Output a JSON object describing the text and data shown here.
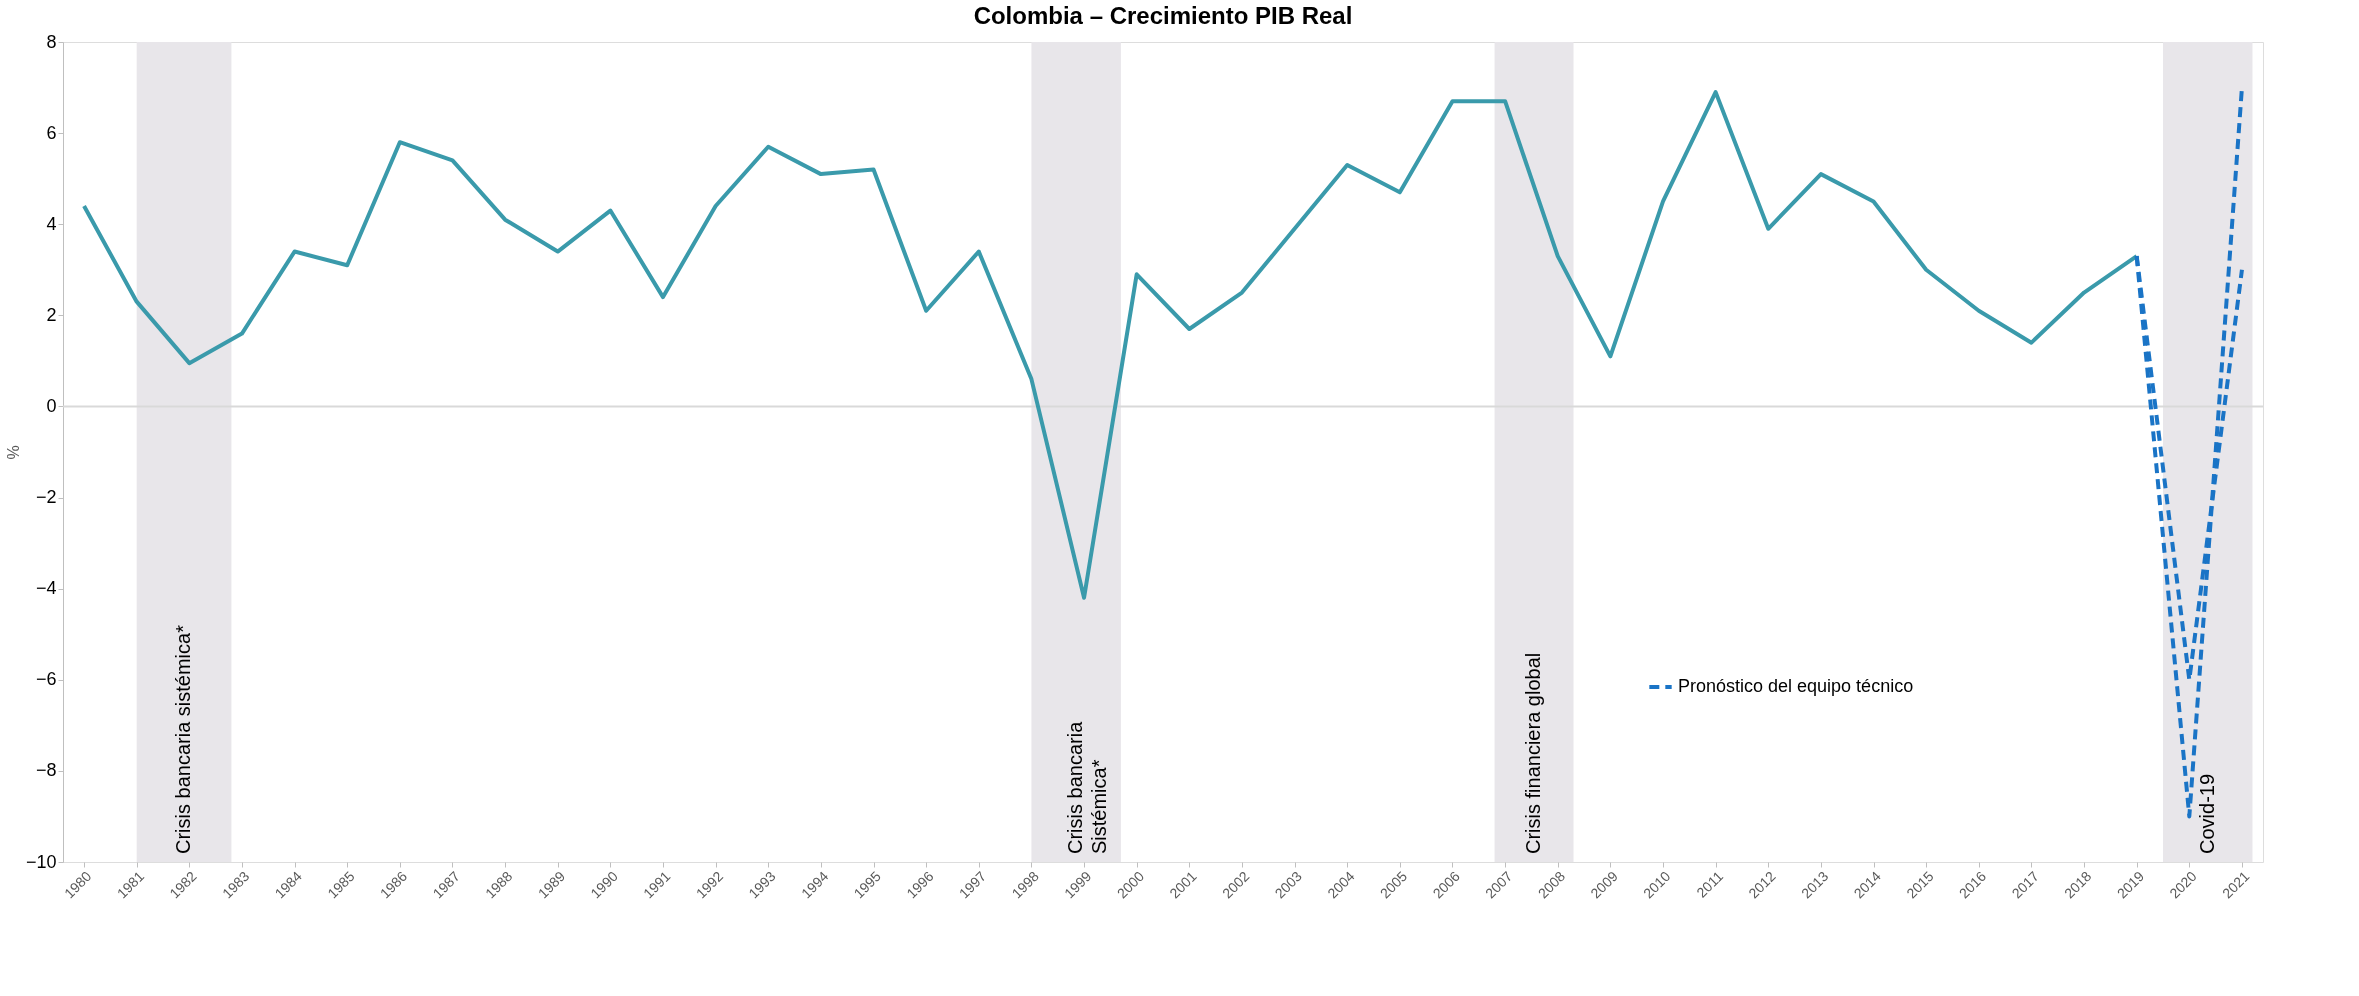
{
  "chart_data": {
    "type": "line",
    "title": "Colombia – Crecimiento PIB Real",
    "ylabel": "%",
    "xlim": [
      1979.6,
      2021.4
    ],
    "xticks": [
      1980,
      1981,
      1982,
      1983,
      1984,
      1985,
      1986,
      1987,
      1988,
      1989,
      1990,
      1991,
      1992,
      1993,
      1994,
      1995,
      1996,
      1997,
      1998,
      1999,
      2000,
      2001,
      2002,
      2003,
      2004,
      2005,
      2006,
      2007,
      2008,
      2009,
      2010,
      2011,
      2012,
      2013,
      2014,
      2015,
      2016,
      2017,
      2018,
      2019,
      2020,
      2021
    ],
    "ylim": [
      -10,
      8
    ],
    "yticks": [
      -10,
      -8,
      -6,
      -4,
      -2,
      0,
      2,
      4,
      6,
      8
    ],
    "grid": false,
    "legend": "bottom right",
    "marker": "none",
    "series": [
      {
        "color": "#3a9aab",
        "line_style": "solid",
        "x": [
          1980,
          1981,
          1982,
          1983,
          1984,
          1985,
          1986,
          1987,
          1988,
          1989,
          1990,
          1991,
          1992,
          1993,
          1994,
          1995,
          1996,
          1997,
          1998,
          1999,
          2000,
          2001,
          2002,
          2003,
          2004,
          2005,
          2006,
          2007,
          2008,
          2009,
          2010,
          2011,
          2012,
          2013,
          2014,
          2015,
          2016,
          2017,
          2018,
          2019
        ],
        "values": [
          4.4,
          2.3,
          0.95,
          1.6,
          3.4,
          3.1,
          5.8,
          5.4,
          4.1,
          3.4,
          4.3,
          2.4,
          4.4,
          5.7,
          5.1,
          5.2,
          2.1,
          3.4,
          0.6,
          -4.2,
          2.9,
          1.7,
          2.5,
          3.9,
          5.3,
          4.7,
          6.7,
          6.7,
          3.3,
          1.1,
          4.5,
          6.9,
          3.9,
          5.1,
          4.5,
          3.0,
          2.1,
          1.4,
          2.5,
          3.3
        ]
      },
      {
        "name": "Pronóstico del equipo técnico",
        "color": "#1a74c6",
        "line_style": "dashed",
        "x": [
          2019,
          2020,
          2021
        ],
        "values": [
          3.3,
          -6.0,
          3.0
        ]
      },
      {
        "color": "#1a74c6",
        "line_style": "dashed",
        "x": [
          2019,
          2020,
          2021
        ],
        "values": [
          3.3,
          -9.0,
          7.0
        ]
      }
    ],
    "ref_lines": [
      {
        "axis": "y",
        "value": 0,
        "color": "#d9d9d9"
      }
    ],
    "bands": [
      {
        "axis": "x",
        "from": 1981,
        "to": 1982.8,
        "label": "Crisis bancaria sistémica*",
        "color": "#e8e6ea"
      },
      {
        "axis": "x",
        "from": 1998,
        "to": 1999.7,
        "label": "Crisis bancaria\nSistémica*",
        "color": "#e8e6ea"
      },
      {
        "axis": "x",
        "from": 2006.8,
        "to": 2008.3,
        "label": "Crisis financiera global",
        "color": "#e8e6ea"
      },
      {
        "axis": "x",
        "from": 2019.5,
        "to": 2021.2,
        "label": "Covid-19",
        "color": "#e8e6ea"
      }
    ]
  }
}
